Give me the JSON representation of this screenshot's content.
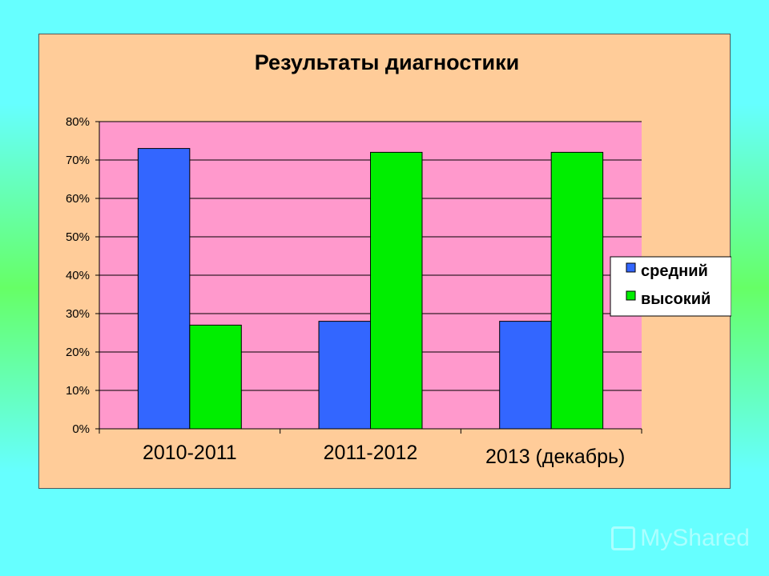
{
  "chart_data": {
    "type": "bar",
    "title": "Результаты  диагностики",
    "categories": [
      "2010-2011",
      "2011-2012",
      "2013 (декабрь)"
    ],
    "series": [
      {
        "name": "средний",
        "color": "#3366ff",
        "values": [
          73,
          28,
          28
        ]
      },
      {
        "name": "высокий",
        "color": "#00ee00",
        "values": [
          27,
          72,
          72
        ]
      }
    ],
    "ylim": [
      0,
      80
    ],
    "yticks": [
      "0%",
      "10%",
      "20%",
      "30%",
      "40%",
      "50%",
      "60%",
      "70%",
      "80%"
    ],
    "ytick_values": [
      0,
      10,
      20,
      30,
      40,
      50,
      60,
      70,
      80
    ],
    "grid": true,
    "legend_position": "right",
    "plot_background": "#ff99cc",
    "panel_background": "#ffcc99"
  },
  "watermark": {
    "text": "MyShared",
    "icon": "myshared-logo-icon"
  }
}
